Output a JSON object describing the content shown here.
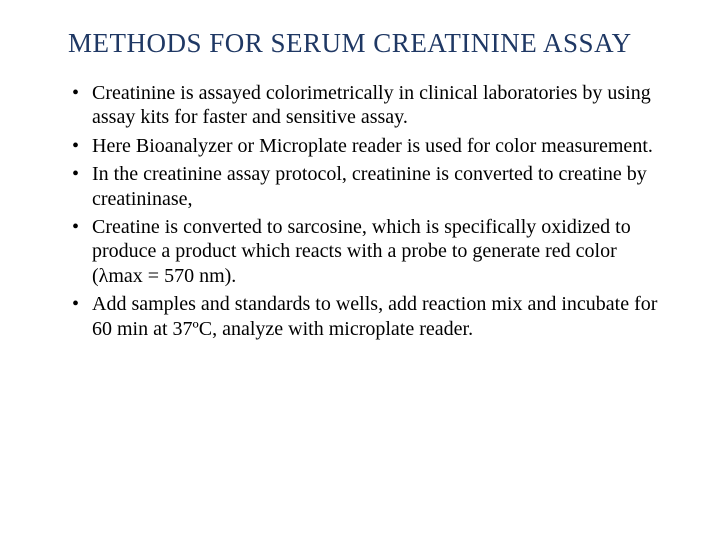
{
  "slide": {
    "title": "METHODS FOR SERUM CREATININE ASSAY",
    "title_color": "#1f3864",
    "title_fontsize": 27,
    "body_fontsize": 20,
    "body_color": "#000000",
    "background_color": "#ffffff",
    "bullets": [
      "Creatinine is assayed colorimetrically in clinical laboratories by using assay kits for faster and sensitive assay.",
      "Here Bioanalyzer or Microplate reader is used for color measurement.",
      "In the creatinine assay protocol, creatinine is converted to creatine by creatininase,",
      "Creatine is converted to sarcosine, which is specifically oxidized to produce a product which reacts with a probe to generate red color (λmax = 570 nm).",
      " Add samples and standards to wells, add reaction mix and incubate for 60 min at 37ºC, analyze with microplate reader."
    ]
  }
}
